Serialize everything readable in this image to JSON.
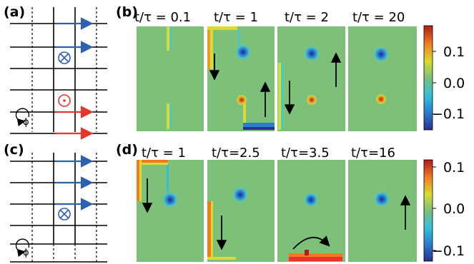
{
  "panels": {
    "a": {
      "label": "(a)",
      "phi_label": "ϕ"
    },
    "b": {
      "label": "(b)",
      "titles": [
        "t/τ = 0.1",
        "t/τ = 1",
        "t/τ = 2",
        "t/τ = 20"
      ]
    },
    "c": {
      "label": "(c)",
      "phi_label": "ϕ"
    },
    "d": {
      "label": "(d)",
      "titles": [
        "t/τ = 1",
        "t/τ=2.5",
        "t/τ=3.5",
        "t/τ=16"
      ]
    }
  },
  "colorbar_top": {
    "ticks": [
      "0.1",
      "0.0",
      "−0.1"
    ]
  },
  "colorbar_bottom": {
    "ticks": [
      "0.1",
      "0.0",
      "−0.1"
    ]
  },
  "colors": {
    "background_map": "#7cc07a",
    "arrow_blue": "#2f5fb3",
    "arrow_red": "#e8342b",
    "colormap": [
      "#2b2f8f",
      "#2a7fd0",
      "#36c0d8",
      "#7cc07a",
      "#d8dc30",
      "#f07a22",
      "#b01c1c"
    ]
  }
}
